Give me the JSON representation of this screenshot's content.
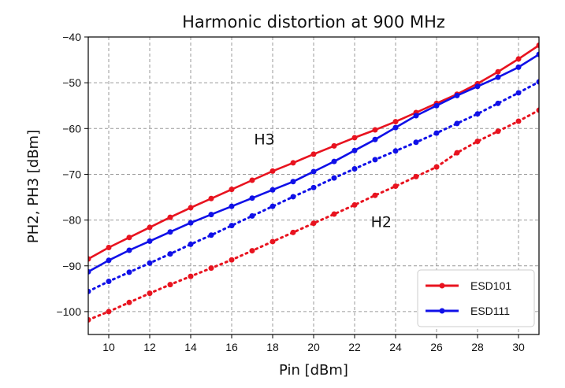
{
  "chart_data": {
    "type": "line",
    "title": "Harmonic distortion at 900 MHz",
    "xlabel": "Pin [dBm]",
    "ylabel": "PH2, PH3 [dBm]",
    "xlim": [
      9,
      31
    ],
    "ylim": [
      -105,
      -40
    ],
    "x_ticks": [
      10,
      12,
      14,
      16,
      18,
      20,
      22,
      24,
      26,
      28,
      30
    ],
    "y_ticks": [
      -100,
      -90,
      -80,
      -70,
      -60,
      -50,
      -40
    ],
    "grid": true,
    "legend_position": "lower-right",
    "annotations": [
      {
        "text": "H3",
        "x": 17.6,
        "y": -63.5
      },
      {
        "text": "H2",
        "x": 23.3,
        "y": -81.5
      }
    ],
    "x": [
      9,
      10,
      11,
      12,
      13,
      14,
      15,
      16,
      17,
      18,
      19,
      20,
      21,
      22,
      23,
      24,
      25,
      26,
      27,
      28,
      29,
      30,
      31
    ],
    "series": [
      {
        "name": "ESD101",
        "color": "#e8131f",
        "style": "solid",
        "values": [
          -88.5,
          -86.0,
          -83.8,
          -81.6,
          -79.4,
          -77.3,
          -75.3,
          -73.3,
          -71.3,
          -69.3,
          -67.5,
          -65.6,
          -63.8,
          -62.0,
          -60.3,
          -58.5,
          -56.5,
          -54.5,
          -52.5,
          -50.2,
          -47.6,
          -44.8,
          -41.8
        ]
      },
      {
        "name": "ESD111",
        "color": "#1010e8",
        "style": "solid",
        "values": [
          -91.3,
          -88.8,
          -86.6,
          -84.6,
          -82.6,
          -80.6,
          -78.8,
          -77.0,
          -75.2,
          -73.4,
          -71.6,
          -69.4,
          -67.2,
          -64.8,
          -62.4,
          -59.8,
          -57.2,
          -55.0,
          -52.8,
          -50.8,
          -48.8,
          -46.6,
          -43.8
        ]
      },
      {
        "name": "",
        "color": "#1010e8",
        "style": "dotted",
        "values": [
          -95.6,
          -93.4,
          -91.4,
          -89.4,
          -87.4,
          -85.3,
          -83.3,
          -81.2,
          -79.1,
          -77.0,
          -74.9,
          -72.9,
          -70.8,
          -68.8,
          -66.8,
          -64.9,
          -63.0,
          -61.0,
          -58.9,
          -56.8,
          -54.5,
          -52.2,
          -49.8
        ]
      },
      {
        "name": "",
        "color": "#e8131f",
        "style": "dotted",
        "values": [
          -101.8,
          -100.0,
          -98.0,
          -96.0,
          -94.1,
          -92.3,
          -90.5,
          -88.7,
          -86.7,
          -84.7,
          -82.7,
          -80.7,
          -78.7,
          -76.7,
          -74.6,
          -72.6,
          -70.5,
          -68.4,
          -65.3,
          -62.8,
          -60.6,
          -58.4,
          -56.0
        ]
      }
    ]
  }
}
